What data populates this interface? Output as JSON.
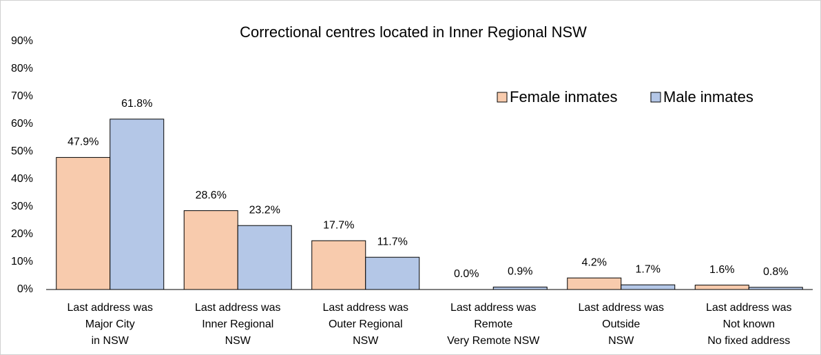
{
  "chart_data": {
    "type": "bar",
    "title": "Correctional centres located in Inner Regional NSW",
    "categories": [
      [
        "Last address was",
        "Major City",
        "in NSW"
      ],
      [
        "Last address was",
        "Inner Regional",
        "NSW"
      ],
      [
        "Last address was",
        "Outer Regional",
        "NSW"
      ],
      [
        "Last address was",
        "Remote",
        "Very Remote NSW"
      ],
      [
        "Last address was",
        "Outside",
        "NSW"
      ],
      [
        "Last address was",
        "Not known",
        "No fixed address"
      ]
    ],
    "category_colors": [
      "#000000",
      "#ff0000",
      "#000000",
      "#000000",
      "#000000",
      "#000000"
    ],
    "series": [
      {
        "name": "Female inmates",
        "color": "#f8cbad",
        "values": [
          47.9,
          28.6,
          17.7,
          0.0,
          4.2,
          1.6
        ],
        "value_labels": [
          "47.9%",
          "28.6%",
          "17.7%",
          "0.0%",
          "4.2%",
          "1.6%"
        ]
      },
      {
        "name": "Male inmates",
        "color": "#b4c7e7",
        "values": [
          61.8,
          23.2,
          11.7,
          0.9,
          1.7,
          0.8
        ],
        "value_labels": [
          "61.8%",
          "23.2%",
          "11.7%",
          "0.9%",
          "1.7%",
          "0.8%"
        ]
      }
    ],
    "ylim": [
      0,
      90
    ],
    "yticks": [
      {
        "value": 0,
        "label": "0%"
      },
      {
        "value": 10,
        "label": "10%"
      },
      {
        "value": 20,
        "label": "20%"
      },
      {
        "value": 30,
        "label": "30%"
      },
      {
        "value": 40,
        "label": "40%"
      },
      {
        "value": 50,
        "label": "50%"
      },
      {
        "value": 60,
        "label": "60%"
      },
      {
        "value": 70,
        "label": "70%"
      },
      {
        "value": 80,
        "label": "80%"
      },
      {
        "value": 90,
        "label": "90%"
      }
    ],
    "grid": false,
    "legend": "top-right"
  }
}
